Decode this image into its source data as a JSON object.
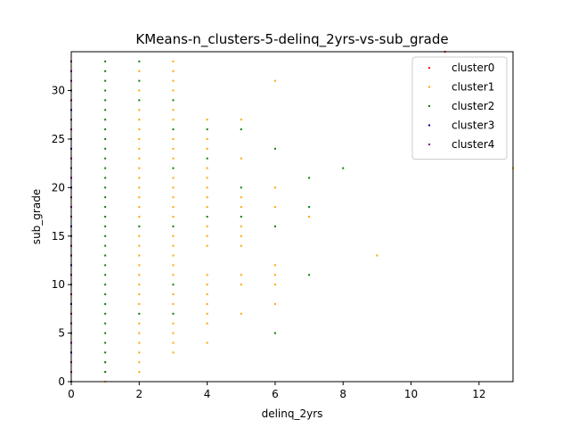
{
  "chart_data": {
    "type": "scatter",
    "title": "KMeans-n_clusters-5-delinq_2yrs-vs-sub_grade",
    "xlabel": "delinq_2yrs",
    "ylabel": "sub_grade",
    "xlim": [
      0,
      13
    ],
    "ylim": [
      0,
      34
    ],
    "xticks": [
      0,
      2,
      4,
      6,
      8,
      10,
      12
    ],
    "yticks": [
      0,
      5,
      10,
      15,
      20,
      25,
      30
    ],
    "grid": false,
    "legend_position": "top-right",
    "series": [
      {
        "name": "cluster0",
        "color": "#ff0000",
        "points": [
          [
            11,
            34
          ]
        ]
      },
      {
        "name": "cluster1",
        "color": "#ffa500",
        "points": [
          [
            1,
            0
          ],
          [
            1,
            1
          ],
          [
            1,
            2
          ],
          [
            2,
            1
          ],
          [
            2,
            2
          ],
          [
            2,
            3
          ],
          [
            2,
            4
          ],
          [
            2,
            5
          ],
          [
            2,
            6
          ],
          [
            2,
            8
          ],
          [
            2,
            9
          ],
          [
            2,
            10
          ],
          [
            2,
            11
          ],
          [
            2,
            12
          ],
          [
            2,
            13
          ],
          [
            2,
            14
          ],
          [
            2,
            15
          ],
          [
            2,
            17
          ],
          [
            2,
            18
          ],
          [
            2,
            19
          ],
          [
            2,
            20
          ],
          [
            2,
            21
          ],
          [
            2,
            22
          ],
          [
            2,
            23
          ],
          [
            2,
            24
          ],
          [
            2,
            25
          ],
          [
            2,
            26
          ],
          [
            2,
            27
          ],
          [
            2,
            28
          ],
          [
            2,
            30
          ],
          [
            2,
            32
          ],
          [
            3,
            3
          ],
          [
            3,
            4
          ],
          [
            3,
            5
          ],
          [
            3,
            6
          ],
          [
            3,
            8
          ],
          [
            3,
            9
          ],
          [
            3,
            11
          ],
          [
            3,
            12
          ],
          [
            3,
            13
          ],
          [
            3,
            14
          ],
          [
            3,
            15
          ],
          [
            3,
            17
          ],
          [
            3,
            18
          ],
          [
            3,
            19
          ],
          [
            3,
            20
          ],
          [
            3,
            21
          ],
          [
            3,
            23
          ],
          [
            3,
            24
          ],
          [
            3,
            25
          ],
          [
            3,
            27
          ],
          [
            3,
            28
          ],
          [
            3,
            30
          ],
          [
            3,
            31
          ],
          [
            3,
            32
          ],
          [
            3,
            33
          ],
          [
            4,
            4
          ],
          [
            4,
            6
          ],
          [
            4,
            7
          ],
          [
            4,
            8
          ],
          [
            4,
            9
          ],
          [
            4,
            10
          ],
          [
            4,
            11
          ],
          [
            4,
            14
          ],
          [
            4,
            15
          ],
          [
            4,
            16
          ],
          [
            4,
            18
          ],
          [
            4,
            19
          ],
          [
            4,
            20
          ],
          [
            4,
            21
          ],
          [
            4,
            22
          ],
          [
            4,
            24
          ],
          [
            4,
            25
          ],
          [
            4,
            27
          ],
          [
            5,
            7
          ],
          [
            5,
            10
          ],
          [
            5,
            11
          ],
          [
            5,
            14
          ],
          [
            5,
            15
          ],
          [
            5,
            16
          ],
          [
            5,
            18
          ],
          [
            5,
            19
          ],
          [
            5,
            23
          ],
          [
            5,
            27
          ],
          [
            6,
            8
          ],
          [
            6,
            10
          ],
          [
            6,
            11
          ],
          [
            6,
            12
          ],
          [
            6,
            18
          ],
          [
            6,
            20
          ],
          [
            6,
            31
          ],
          [
            7,
            17
          ],
          [
            9,
            13
          ],
          [
            13,
            22
          ]
        ]
      },
      {
        "name": "cluster2",
        "color": "#008000",
        "points": [
          [
            1,
            1
          ],
          [
            1,
            2
          ],
          [
            1,
            3
          ],
          [
            1,
            4
          ],
          [
            1,
            5
          ],
          [
            1,
            6
          ],
          [
            1,
            7
          ],
          [
            1,
            8
          ],
          [
            1,
            9
          ],
          [
            1,
            10
          ],
          [
            1,
            11
          ],
          [
            1,
            12
          ],
          [
            1,
            13
          ],
          [
            1,
            14
          ],
          [
            1,
            15
          ],
          [
            1,
            16
          ],
          [
            1,
            17
          ],
          [
            1,
            18
          ],
          [
            1,
            19
          ],
          [
            1,
            20
          ],
          [
            1,
            21
          ],
          [
            1,
            22
          ],
          [
            1,
            23
          ],
          [
            1,
            24
          ],
          [
            1,
            25
          ],
          [
            1,
            26
          ],
          [
            1,
            27
          ],
          [
            1,
            28
          ],
          [
            1,
            29
          ],
          [
            1,
            30
          ],
          [
            1,
            31
          ],
          [
            1,
            32
          ],
          [
            1,
            33
          ],
          [
            2,
            7
          ],
          [
            2,
            16
          ],
          [
            2,
            29
          ],
          [
            2,
            31
          ],
          [
            2,
            33
          ],
          [
            3,
            7
          ],
          [
            3,
            10
          ],
          [
            3,
            16
          ],
          [
            3,
            22
          ],
          [
            3,
            26
          ],
          [
            3,
            29
          ],
          [
            4,
            17
          ],
          [
            4,
            23
          ],
          [
            4,
            26
          ],
          [
            5,
            17
          ],
          [
            5,
            20
          ],
          [
            5,
            26
          ],
          [
            6,
            5
          ],
          [
            6,
            16
          ],
          [
            6,
            24
          ],
          [
            7,
            11
          ],
          [
            7,
            18
          ],
          [
            7,
            21
          ],
          [
            8,
            22
          ]
        ]
      },
      {
        "name": "cluster3",
        "color": "#00008b",
        "points": [
          [
            0,
            3
          ],
          [
            0,
            8
          ],
          [
            0,
            12
          ],
          [
            0,
            16
          ],
          [
            0,
            20
          ],
          [
            0,
            24
          ],
          [
            0,
            28
          ]
        ]
      },
      {
        "name": "cluster4",
        "color": "#800080",
        "points": [
          [
            0,
            0
          ],
          [
            0,
            1
          ],
          [
            0,
            2
          ],
          [
            0,
            4
          ],
          [
            0,
            5
          ],
          [
            0,
            6
          ],
          [
            0,
            7
          ],
          [
            0,
            9
          ],
          [
            0,
            10
          ],
          [
            0,
            11
          ],
          [
            0,
            13
          ],
          [
            0,
            14
          ],
          [
            0,
            15
          ],
          [
            0,
            17
          ],
          [
            0,
            18
          ],
          [
            0,
            19
          ],
          [
            0,
            21
          ],
          [
            0,
            22
          ],
          [
            0,
            23
          ],
          [
            0,
            25
          ],
          [
            0,
            26
          ],
          [
            0,
            27
          ],
          [
            0,
            29
          ],
          [
            0,
            30
          ],
          [
            0,
            31
          ],
          [
            0,
            32
          ],
          [
            0,
            33
          ]
        ]
      }
    ]
  }
}
